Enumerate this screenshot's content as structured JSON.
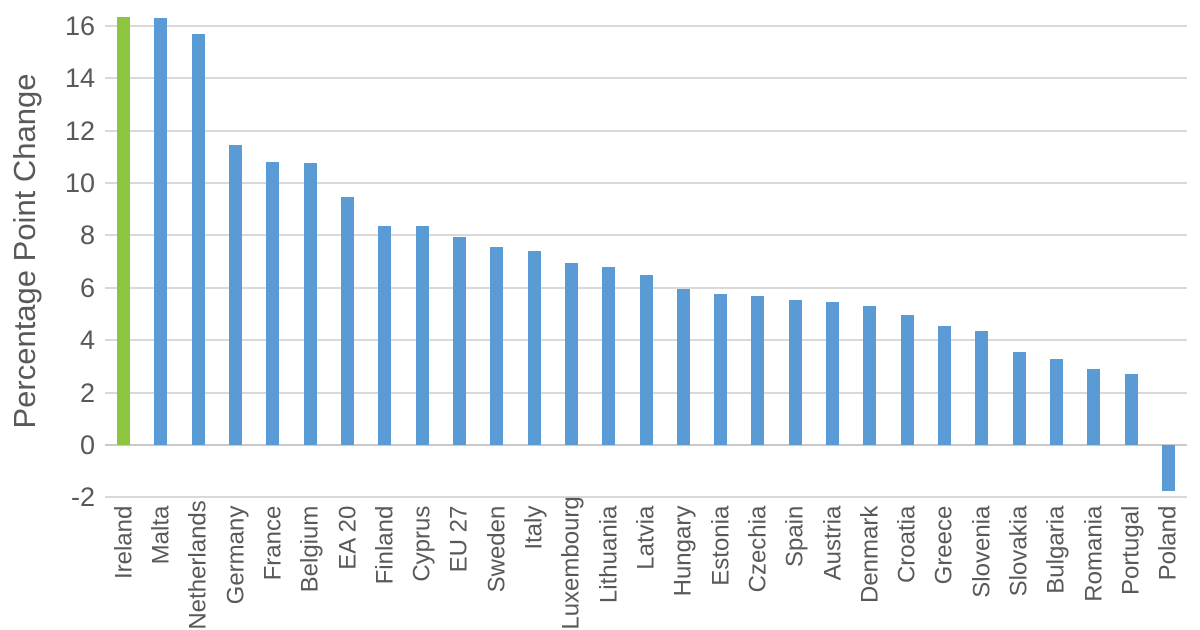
{
  "chart_data": {
    "type": "bar",
    "title": "",
    "xlabel": "",
    "ylabel": "Percentage Point Change",
    "categories": [
      "Ireland",
      "Malta",
      "Netherlands",
      "Germany",
      "France",
      "Belgium",
      "EA 20",
      "Finland",
      "Cyprus",
      "EU 27",
      "Sweden",
      "Italy",
      "Luxembourg",
      "Lithuania",
      "Latvia",
      "Hungary",
      "Estonia",
      "Czechia",
      "Spain",
      "Austria",
      "Denmark",
      "Croatia",
      "Greece",
      "Slovenia",
      "Slovakia",
      "Bulgaria",
      "Romania",
      "Portugal",
      "Poland"
    ],
    "values": [
      16.35,
      16.3,
      15.7,
      11.45,
      10.8,
      10.75,
      9.45,
      8.35,
      8.35,
      7.95,
      7.55,
      7.4,
      6.95,
      6.8,
      6.5,
      5.95,
      5.75,
      5.7,
      5.55,
      5.45,
      5.3,
      4.95,
      4.55,
      4.35,
      3.55,
      3.3,
      2.9,
      2.7,
      -1.75
    ],
    "highlight_category": "Ireland",
    "highlight_color": "#8CC540",
    "bar_color": "#5B9BD5",
    "yticks": [
      16,
      14,
      12,
      10,
      8,
      6,
      4,
      2,
      0,
      -2
    ],
    "ylim": [
      -2.8,
      16.6
    ],
    "grid": "horizontal-only",
    "legend": "none",
    "text_color": "#595959",
    "gridline_color": "#D9D9D9",
    "zero_line_color": "#C9C9C9"
  }
}
